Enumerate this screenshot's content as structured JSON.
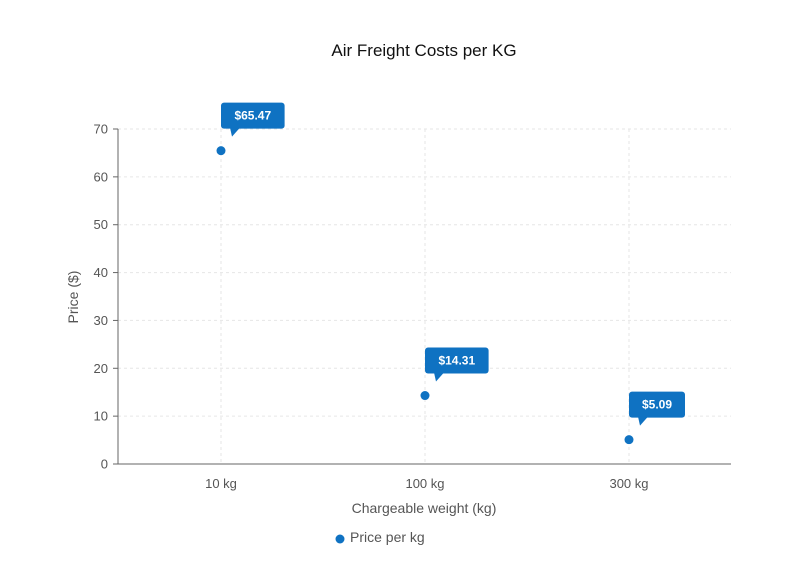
{
  "chart_data": {
    "type": "scatter",
    "title": "Air Freight Costs per KG",
    "xlabel": "Chargeable weight (kg)",
    "ylabel": "Price ($)",
    "categories": [
      "10 kg",
      "100 kg",
      "300 kg"
    ],
    "series": [
      {
        "name": "Price per kg",
        "values": [
          65.47,
          14.31,
          5.09
        ],
        "labels": [
          "$65.47",
          "$14.31",
          "$5.09"
        ],
        "color": "#0f72c2"
      }
    ],
    "ylim": [
      0,
      70
    ],
    "yticks": [
      0,
      10,
      20,
      30,
      40,
      50,
      60,
      70
    ],
    "grid": true,
    "legend": "bottom"
  }
}
